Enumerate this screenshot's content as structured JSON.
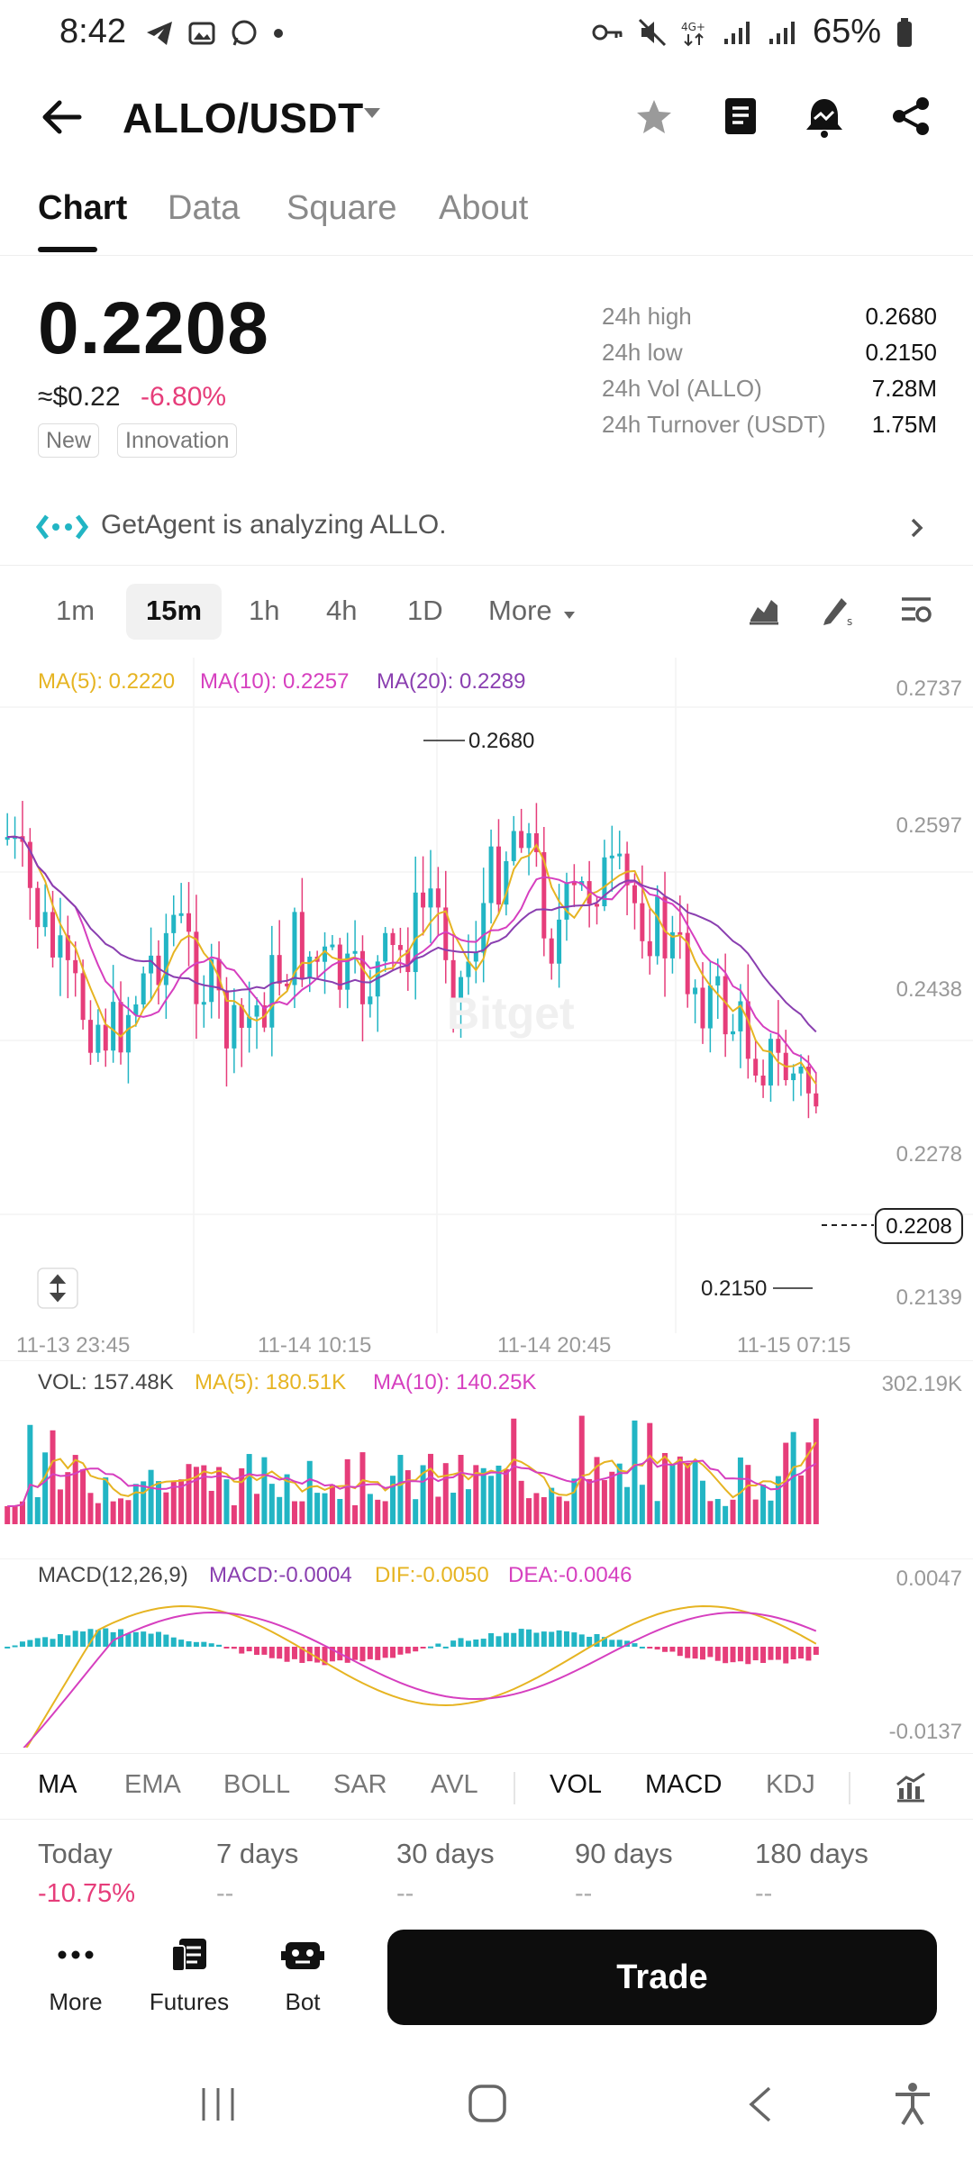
{
  "status_bar": {
    "time": "8:42",
    "battery": "65%"
  },
  "header": {
    "pair": "ALLO/USDT"
  },
  "tabs": [
    {
      "label": "Chart",
      "active": true
    },
    {
      "label": "Data",
      "active": false
    },
    {
      "label": "Square",
      "active": false
    },
    {
      "label": "About",
      "active": false
    }
  ],
  "ticker": {
    "price": "0.2208",
    "approx_usd": "≈$0.22",
    "change": "-6.80%",
    "tags": [
      "New",
      "Innovation"
    ],
    "stats": [
      {
        "label": "24h high",
        "value": "0.2680"
      },
      {
        "label": "24h low",
        "value": "0.2150"
      },
      {
        "label": "24h Vol (ALLO)",
        "value": "7.28M"
      },
      {
        "label": "24h Turnover (USDT)",
        "value": "1.75M"
      }
    ]
  },
  "agent_banner": {
    "text": "GetAgent is analyzing ALLO."
  },
  "timeframes": {
    "items": [
      "1m",
      "15m",
      "1h",
      "4h",
      "1D",
      "More"
    ],
    "selected": "15m"
  },
  "main_chart": {
    "legend": {
      "ma5": "MA(5): 0.2220",
      "ma10": "MA(10): 0.2257",
      "ma20": "MA(20): 0.2289"
    },
    "y_axis_labels": [
      "0.2737",
      "0.2597",
      "0.2438",
      "0.2278",
      "0.2139"
    ],
    "x_axis_labels": [
      "11-13 23:45",
      "11-14 10:15",
      "11-14 20:45",
      "11-15 07:15"
    ],
    "high_marker": "0.2680",
    "low_marker": "0.2150",
    "current_price_tag": "0.2208",
    "watermark": "Bitget"
  },
  "volume_panel": {
    "vol": "VOL: 157.48K",
    "ma5": "MA(5): 180.51K",
    "ma10": "MA(10): 140.25K",
    "max_label": "302.19K"
  },
  "macd_panel": {
    "title": "MACD(12,26,9)",
    "macd": "MACD:-0.0004",
    "dif": "DIF:-0.0050",
    "dea": "DEA:-0.0046",
    "top_label": "0.0047",
    "bottom_label": "-0.0137"
  },
  "indicators": {
    "main": [
      "MA",
      "EMA",
      "BOLL",
      "SAR",
      "AVL"
    ],
    "sub": [
      "VOL",
      "MACD",
      "KDJ"
    ]
  },
  "performance": [
    {
      "label": "Today",
      "value": "-10.75%"
    },
    {
      "label": "7 days",
      "value": "--"
    },
    {
      "label": "30 days",
      "value": "--"
    },
    {
      "label": "90 days",
      "value": "--"
    },
    {
      "label": "180 days",
      "value": "--"
    }
  ],
  "bottom_actions": {
    "more": "More",
    "futures": "Futures",
    "bot": "Bot",
    "trade": "Trade"
  },
  "colors": {
    "up": "#22b5c4",
    "down": "#e63d7a",
    "ma5": "#e6b422",
    "ma10": "#d63fbf",
    "ma20": "#8a3fb0"
  }
}
